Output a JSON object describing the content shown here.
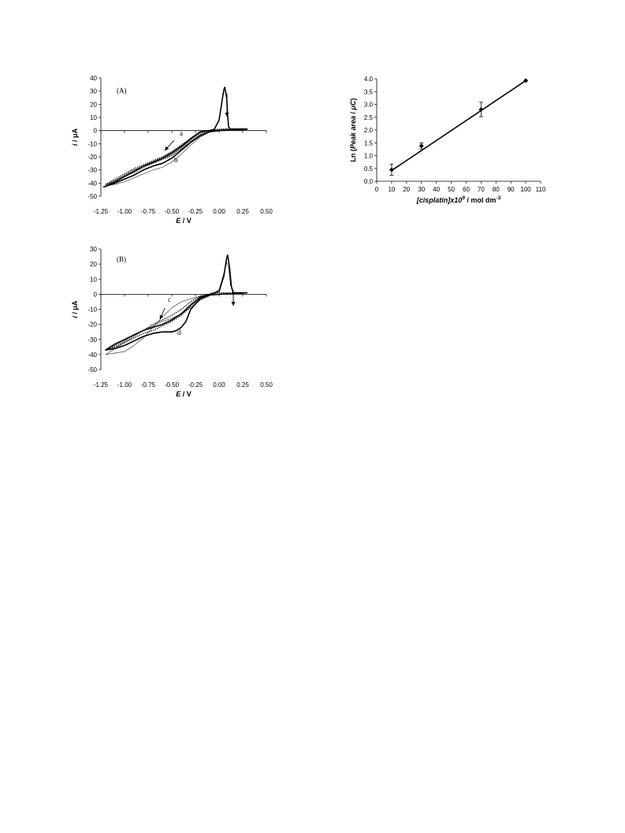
{
  "chart_data": [
    {
      "type": "line",
      "panel_label": "(A)",
      "xlabel_var": "E",
      "xlabel_unit": " / V",
      "ylabel_var": "i",
      "ylabel_unit": " / μA",
      "xlim": [
        -1.25,
        0.5
      ],
      "ylim": [
        -50,
        40
      ],
      "xticks": [
        "-1.25",
        "-1.00",
        "-0.75",
        "-0.50",
        "-0.25",
        "0.00",
        "0.25",
        "0.50"
      ],
      "yticks": [
        "40",
        "30",
        "20",
        "10",
        "0",
        "-10",
        "-20",
        "-30",
        "-40",
        "-50"
      ],
      "curve_labels": [
        "a",
        "b"
      ],
      "series": [
        {
          "label": "a",
          "style": "dotted",
          "forward": [
            [
              0.3,
              1.5
            ],
            [
              0.2,
              1
            ],
            [
              0.1,
              0.8
            ],
            [
              0.0,
              0.5
            ],
            [
              -0.1,
              -0.5
            ],
            [
              -0.2,
              -3
            ],
            [
              -0.3,
              -8
            ],
            [
              -0.4,
              -14
            ],
            [
              -0.5,
              -19
            ],
            [
              -0.6,
              -22
            ],
            [
              -0.7,
              -25
            ],
            [
              -0.8,
              -28
            ],
            [
              -0.9,
              -32
            ],
            [
              -1.0,
              -35
            ],
            [
              -1.1,
              -38
            ],
            [
              -1.2,
              -41
            ]
          ],
          "return": [
            [
              -1.2,
              -41
            ],
            [
              -1.1,
              -37
            ],
            [
              -1.0,
              -33
            ],
            [
              -0.9,
              -29
            ],
            [
              -0.8,
              -26
            ],
            [
              -0.7,
              -23
            ],
            [
              -0.6,
              -20
            ],
            [
              -0.5,
              -16
            ],
            [
              -0.4,
              -11
            ],
            [
              -0.3,
              -6
            ],
            [
              -0.2,
              -1
            ],
            [
              -0.1,
              0.3
            ],
            [
              0.0,
              1
            ],
            [
              0.1,
              1.5
            ],
            [
              0.2,
              1.5
            ],
            [
              0.3,
              1.5
            ]
          ]
        },
        {
          "label": "b",
          "style": "thin",
          "forward": [
            [
              0.3,
              1
            ],
            [
              0.2,
              0.8
            ],
            [
              0.1,
              0.5
            ],
            [
              0.0,
              0
            ],
            [
              -0.1,
              -1
            ],
            [
              -0.2,
              -5
            ],
            [
              -0.3,
              -11
            ],
            [
              -0.4,
              -18
            ],
            [
              -0.5,
              -24
            ],
            [
              -0.6,
              -28
            ],
            [
              -0.7,
              -30
            ],
            [
              -0.8,
              -33
            ],
            [
              -0.9,
              -36
            ],
            [
              -1.0,
              -39
            ],
            [
              -1.1,
              -41
            ],
            [
              -1.2,
              -42
            ]
          ],
          "return": [
            [
              -1.2,
              -42
            ],
            [
              -1.1,
              -38
            ],
            [
              -1.0,
              -34
            ],
            [
              -0.9,
              -30
            ],
            [
              -0.8,
              -27
            ],
            [
              -0.7,
              -25
            ],
            [
              -0.6,
              -22
            ],
            [
              -0.5,
              -18
            ],
            [
              -0.4,
              -13
            ],
            [
              -0.3,
              -7
            ],
            [
              -0.2,
              -2
            ],
            [
              -0.1,
              0
            ],
            [
              0.0,
              0.8
            ],
            [
              0.1,
              1
            ],
            [
              0.2,
              1
            ],
            [
              0.3,
              1
            ]
          ]
        },
        {
          "label": "",
          "style": "bold",
          "forward": [
            [
              0.3,
              1
            ],
            [
              0.2,
              0.5
            ],
            [
              0.1,
              0.3
            ],
            [
              0.0,
              0
            ],
            [
              -0.1,
              -1
            ],
            [
              -0.2,
              -4
            ],
            [
              -0.3,
              -9
            ],
            [
              -0.4,
              -15
            ],
            [
              -0.5,
              -21
            ],
            [
              -0.6,
              -25
            ],
            [
              -0.7,
              -27
            ],
            [
              -0.8,
              -30
            ],
            [
              -0.9,
              -34
            ],
            [
              -1.0,
              -37
            ],
            [
              -1.1,
              -40
            ],
            [
              -1.22,
              -43
            ]
          ],
          "return": [
            [
              -1.22,
              -43
            ],
            [
              -1.1,
              -39
            ],
            [
              -1.0,
              -35
            ],
            [
              -0.9,
              -31
            ],
            [
              -0.8,
              -27
            ],
            [
              -0.7,
              -24
            ],
            [
              -0.6,
              -21
            ],
            [
              -0.5,
              -17
            ],
            [
              -0.4,
              -12
            ],
            [
              -0.3,
              -6
            ],
            [
              -0.2,
              -1
            ],
            [
              -0.1,
              0
            ],
            [
              -0.05,
              1
            ],
            [
              0.0,
              8
            ],
            [
              0.03,
              22
            ],
            [
              0.05,
              31
            ],
            [
              0.06,
              33
            ],
            [
              0.08,
              25
            ],
            [
              0.09,
              12
            ],
            [
              0.1,
              3
            ],
            [
              0.12,
              1
            ],
            [
              0.3,
              1
            ]
          ]
        }
      ]
    },
    {
      "type": "line",
      "panel_label": "(B)",
      "xlabel_var": "E",
      "xlabel_unit": " / V",
      "ylabel_var": "i",
      "ylabel_unit": " / μA",
      "xlim": [
        -1.25,
        0.5
      ],
      "ylim": [
        -50,
        30
      ],
      "xticks": [
        "-1.25",
        "-1.00",
        "-0.75",
        "-0.50",
        "-0.25",
        "0.00",
        "0.25",
        "0.50"
      ],
      "yticks": [
        "30",
        "20",
        "10",
        "0",
        "-10",
        "-20",
        "-30",
        "-40",
        "-50"
      ],
      "curve_labels": [
        "c",
        "d"
      ],
      "series": [
        {
          "label": "c",
          "style": "thin",
          "forward": [
            [
              0.3,
              1
            ],
            [
              0.2,
              0.8
            ],
            [
              0.1,
              0.5
            ],
            [
              0.0,
              0
            ],
            [
              -0.1,
              -0.5
            ],
            [
              -0.2,
              -1.5
            ],
            [
              -0.3,
              -3
            ],
            [
              -0.4,
              -5
            ],
            [
              -0.5,
              -9
            ],
            [
              -0.6,
              -15
            ],
            [
              -0.7,
              -22
            ],
            [
              -0.8,
              -29
            ],
            [
              -0.9,
              -34
            ],
            [
              -1.0,
              -38
            ],
            [
              -1.1,
              -39
            ],
            [
              -1.2,
              -40
            ]
          ],
          "return": [
            [
              -1.2,
              -40
            ],
            [
              -1.1,
              -36
            ],
            [
              -1.0,
              -32
            ],
            [
              -0.9,
              -28
            ],
            [
              -0.8,
              -24
            ],
            [
              -0.7,
              -21
            ],
            [
              -0.6,
              -18
            ],
            [
              -0.5,
              -16
            ],
            [
              -0.4,
              -13
            ],
            [
              -0.3,
              -9
            ],
            [
              -0.2,
              -4
            ],
            [
              -0.1,
              -1
            ],
            [
              0.0,
              3
            ],
            [
              0.05,
              14
            ],
            [
              0.08,
              21
            ],
            [
              0.1,
              18
            ],
            [
              0.12,
              6
            ],
            [
              0.15,
              1
            ],
            [
              0.3,
              1
            ]
          ]
        },
        {
          "label": "",
          "style": "dotted",
          "forward": [
            [
              0.3,
              1
            ],
            [
              0.2,
              0.5
            ],
            [
              0.1,
              0.3
            ],
            [
              0.0,
              0
            ],
            [
              -0.1,
              -0.5
            ],
            [
              -0.2,
              -3
            ],
            [
              -0.3,
              -8
            ],
            [
              -0.4,
              -14
            ],
            [
              -0.5,
              -18
            ],
            [
              -0.6,
              -21
            ],
            [
              -0.7,
              -24
            ],
            [
              -0.8,
              -26
            ],
            [
              -0.9,
              -29
            ],
            [
              -1.0,
              -32
            ],
            [
              -1.1,
              -35
            ],
            [
              -1.2,
              -37
            ]
          ],
          "return": [
            [
              -1.2,
              -37
            ],
            [
              -1.1,
              -34
            ],
            [
              -1.0,
              -31
            ],
            [
              -0.9,
              -27
            ],
            [
              -0.8,
              -24
            ],
            [
              -0.7,
              -20
            ],
            [
              -0.6,
              -17
            ],
            [
              -0.5,
              -14
            ],
            [
              -0.4,
              -10
            ],
            [
              -0.3,
              -5
            ],
            [
              -0.2,
              -1
            ],
            [
              -0.1,
              0
            ],
            [
              0.0,
              1
            ],
            [
              0.1,
              1
            ],
            [
              0.3,
              1
            ]
          ]
        },
        {
          "label": "d",
          "style": "bold",
          "forward": [
            [
              0.3,
              1
            ],
            [
              0.2,
              0.5
            ],
            [
              0.1,
              0.3
            ],
            [
              0.0,
              0
            ],
            [
              -0.1,
              -0.5
            ],
            [
              -0.2,
              -3
            ],
            [
              -0.3,
              -10
            ],
            [
              -0.35,
              -18
            ],
            [
              -0.4,
              -22
            ],
            [
              -0.45,
              -24
            ],
            [
              -0.5,
              -25
            ],
            [
              -0.6,
              -25
            ],
            [
              -0.7,
              -26
            ],
            [
              -0.8,
              -28
            ],
            [
              -0.9,
              -31
            ],
            [
              -1.0,
              -34
            ],
            [
              -1.1,
              -36
            ],
            [
              -1.2,
              -37
            ]
          ],
          "return": [
            [
              -1.2,
              -37
            ],
            [
              -1.1,
              -33
            ],
            [
              -1.0,
              -30
            ],
            [
              -0.9,
              -27
            ],
            [
              -0.8,
              -24
            ],
            [
              -0.7,
              -22
            ],
            [
              -0.6,
              -20
            ],
            [
              -0.5,
              -17
            ],
            [
              -0.4,
              -13
            ],
            [
              -0.3,
              -7
            ],
            [
              -0.2,
              -2
            ],
            [
              -0.1,
              0
            ],
            [
              0.0,
              2
            ],
            [
              0.05,
              12
            ],
            [
              0.08,
              24
            ],
            [
              0.09,
              26
            ],
            [
              0.11,
              18
            ],
            [
              0.13,
              5
            ],
            [
              0.15,
              1
            ],
            [
              0.3,
              1
            ]
          ]
        }
      ]
    },
    {
      "type": "scatter",
      "xlabel_var": "[cisplatin]x10",
      "xlabel_exp": "9",
      "xlabel_unit": " / mol dm",
      "xlabel_unit_exp": "-3",
      "ylabel_pre": "Ln (",
      "ylabel_var": "Peak area",
      "ylabel_mid": " / ",
      "ylabel_var2": "μC",
      "ylabel_post": ")",
      "xlim": [
        0,
        110
      ],
      "ylim": [
        0,
        4.0
      ],
      "xticks": [
        "0",
        "10",
        "20",
        "30",
        "40",
        "50",
        "60",
        "70",
        "80",
        "90",
        "100",
        "110"
      ],
      "yticks": [
        "4.0",
        "3.5",
        "3.0",
        "2.5",
        "2.0",
        "1.5",
        "1.0",
        "0.5",
        "0.0"
      ],
      "x": [
        10,
        30,
        70,
        100
      ],
      "y": [
        0.45,
        1.38,
        2.8,
        3.93
      ],
      "error": [
        0.22,
        0.12,
        0.28,
        0
      ],
      "fit": [
        [
          10,
          0.42
        ],
        [
          100,
          3.93
        ]
      ]
    }
  ]
}
